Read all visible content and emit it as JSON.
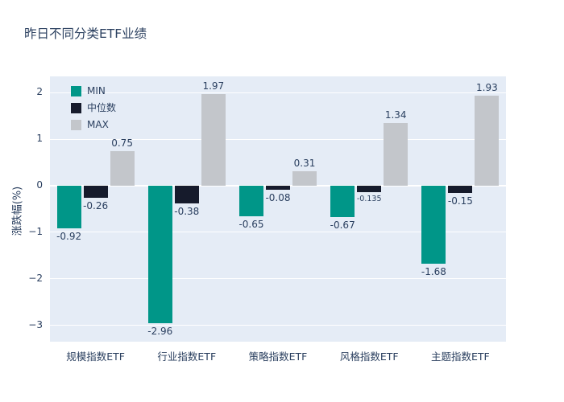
{
  "chart_data": {
    "type": "bar",
    "title": "昨日不同分类ETF业绩",
    "xlabel": "",
    "ylabel": "涨跌幅(%)",
    "categories": [
      "规模指数ETF",
      "行业指数ETF",
      "策略指数ETF",
      "风格指数ETF",
      "主题指数ETF"
    ],
    "series": [
      {
        "name": "MIN",
        "color": "#009688",
        "values": [
          -0.92,
          -2.96,
          -0.65,
          -0.67,
          -1.68
        ],
        "labels": [
          "-0.92",
          "-2.96",
          "-0.65",
          "-0.67",
          "-1.68"
        ]
      },
      {
        "name": "中位数",
        "color": "#161b2c",
        "values": [
          -0.26,
          -0.38,
          -0.08,
          -0.135,
          -0.15
        ],
        "labels": [
          "-0.26",
          "-0.38",
          "-0.08",
          "-0.135",
          "-0.15"
        ]
      },
      {
        "name": "MAX",
        "color": "#c3c6cb",
        "values": [
          0.75,
          1.97,
          0.31,
          1.34,
          1.93
        ],
        "labels": [
          "0.75",
          "1.97",
          "0.31",
          "1.34",
          "1.93"
        ]
      }
    ],
    "yticks": [
      {
        "value": -3,
        "label": "−3"
      },
      {
        "value": -2,
        "label": "−2"
      },
      {
        "value": -1,
        "label": "−1"
      },
      {
        "value": 0,
        "label": "0"
      },
      {
        "value": 1,
        "label": "1"
      },
      {
        "value": 2,
        "label": "2"
      }
    ],
    "ylim": [
      -3.35,
      2.35
    ],
    "grid": true,
    "legend_position": "top-left",
    "colors": {
      "plot_background": "#e5ecf6",
      "grid": "#ffffff",
      "text": "#2a3f5f",
      "page_background": "#ffffff"
    }
  }
}
